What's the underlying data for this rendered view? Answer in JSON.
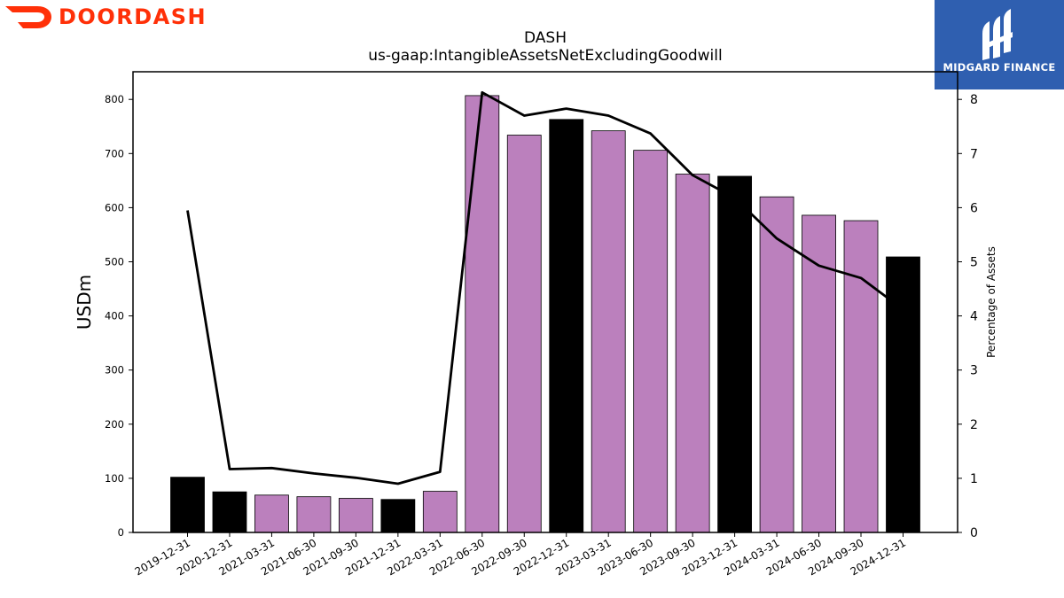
{
  "branding": {
    "left_logo": {
      "text": "DOORDASH",
      "icon": "doordash-dash-icon",
      "color": "#ff3008"
    },
    "right_logo": {
      "text": "MIDGARD FINANCE",
      "icon": "midgard-m-icon",
      "background": "#2f5fb0"
    }
  },
  "chart_data": {
    "type": "bar",
    "title": "DASH",
    "subtitle": "us-gaap:IntangibleAssetsNetExcludingGoodwill",
    "ylabel": "USDm",
    "y2label": "Percentage of Assets",
    "ylim": [
      0,
      850
    ],
    "y2lim": [
      0,
      8.5
    ],
    "yticks": [
      0,
      100,
      200,
      300,
      400,
      500,
      600,
      700,
      800
    ],
    "y2ticks": [
      0,
      1,
      2,
      3,
      4,
      5,
      6,
      7,
      8
    ],
    "grid": false,
    "colors": {
      "annual": "#000000",
      "quarterly": "#bb80bd",
      "line": "#000000"
    },
    "categories": [
      "2019-12-31",
      "2020-12-31",
      "2021-03-31",
      "2021-06-30",
      "2021-09-30",
      "2021-12-31",
      "2022-03-31",
      "2022-06-30",
      "2022-09-30",
      "2022-12-31",
      "2023-03-31",
      "2023-06-30",
      "2023-09-30",
      "2023-12-31",
      "2024-03-31",
      "2024-06-30",
      "2024-09-30",
      "2024-12-31"
    ],
    "series": [
      {
        "type": "bar",
        "axis": "left",
        "values": [
          102,
          75,
          69,
          66,
          63,
          61,
          76,
          807,
          734,
          763,
          742,
          706,
          662,
          658,
          620,
          586,
          576,
          509
        ],
        "annual": [
          true,
          true,
          false,
          false,
          false,
          true,
          false,
          false,
          false,
          true,
          false,
          false,
          false,
          true,
          false,
          false,
          false,
          true
        ]
      },
      {
        "type": "line",
        "axis": "right",
        "values": [
          5.95,
          1.17,
          1.19,
          1.09,
          1.01,
          0.9,
          1.12,
          8.13,
          7.7,
          7.83,
          7.7,
          7.37,
          6.6,
          6.18,
          5.43,
          4.93,
          4.7,
          4.12
        ]
      }
    ]
  }
}
